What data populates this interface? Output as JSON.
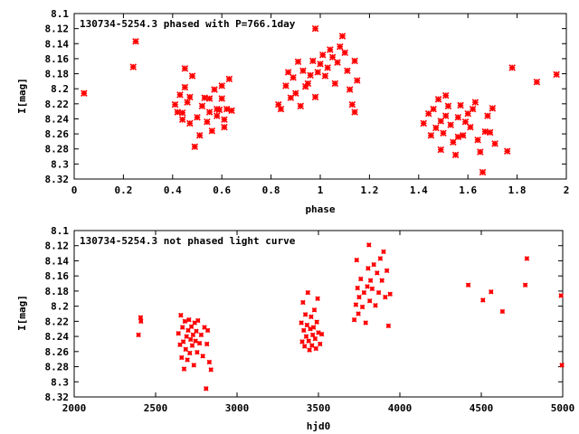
{
  "chart_data": [
    {
      "type": "scatter",
      "title": "130734-5254.3 phased with P=766.1day",
      "xlabel": "phase",
      "ylabel": "I[mag]",
      "xlim": [
        0,
        2
      ],
      "ylim": [
        8.1,
        8.32
      ],
      "y_inverted": true,
      "grid": false,
      "marker_color": "#ff0000",
      "x_ticks": [
        "0",
        "0.2",
        "0.4",
        "0.6",
        "0.8",
        "1",
        "1.2",
        "1.4",
        "1.6",
        "1.8",
        "2"
      ],
      "y_ticks": [
        "8.1",
        "8.12",
        "8.14",
        "8.16",
        "8.18",
        "8.2",
        "8.22",
        "8.24",
        "8.26",
        "8.28",
        "8.3",
        "8.32"
      ],
      "series": [
        {
          "points": [
            [
              0.04,
              8.206
            ],
            [
              0.24,
              8.171
            ],
            [
              0.25,
              8.137
            ],
            [
              0.43,
              8.208
            ],
            [
              0.44,
              8.232
            ],
            [
              0.45,
              8.173
            ],
            [
              0.46,
              8.218
            ],
            [
              0.45,
              8.198
            ],
            [
              0.47,
              8.246
            ],
            [
              0.48,
              8.183
            ],
            [
              0.41,
              8.221
            ],
            [
              0.42,
              8.231
            ],
            [
              0.5,
              8.238
            ],
            [
              0.49,
              8.277
            ],
            [
              0.52,
              8.223
            ],
            [
              0.51,
              8.262
            ],
            [
              0.53,
              8.212
            ],
            [
              0.55,
              8.231
            ],
            [
              0.56,
              8.256
            ],
            [
              0.57,
              8.201
            ],
            [
              0.58,
              8.236
            ],
            [
              0.59,
              8.228
            ],
            [
              0.6,
              8.213
            ],
            [
              0.61,
              8.241
            ],
            [
              0.62,
              8.227
            ],
            [
              0.63,
              8.187
            ],
            [
              0.64,
              8.229
            ],
            [
              0.6,
              8.196
            ],
            [
              0.54,
              8.244
            ],
            [
              0.47,
              8.211
            ],
            [
              0.44,
              8.241
            ],
            [
              0.55,
              8.213
            ],
            [
              0.61,
              8.251
            ],
            [
              0.58,
              8.227
            ],
            [
              0.83,
              8.221
            ],
            [
              0.84,
              8.227
            ],
            [
              0.86,
              8.196
            ],
            [
              0.87,
              8.178
            ],
            [
              0.88,
              8.212
            ],
            [
              0.89,
              8.185
            ],
            [
              0.9,
              8.206
            ],
            [
              0.91,
              8.164
            ],
            [
              0.92,
              8.223
            ],
            [
              0.93,
              8.176
            ],
            [
              0.94,
              8.197
            ],
            [
              0.96,
              8.182
            ],
            [
              0.97,
              8.163
            ],
            [
              0.98,
              8.12
            ],
            [
              0.99,
              8.178
            ],
            [
              1.0,
              8.167
            ],
            [
              1.01,
              8.155
            ],
            [
              1.02,
              8.183
            ],
            [
              1.03,
              8.172
            ],
            [
              1.04,
              8.148
            ],
            [
              1.05,
              8.158
            ],
            [
              1.06,
              8.193
            ],
            [
              1.07,
              8.165
            ],
            [
              1.08,
              8.144
            ],
            [
              1.09,
              8.13
            ],
            [
              1.1,
              8.152
            ],
            [
              1.11,
              8.176
            ],
            [
              1.12,
              8.201
            ],
            [
              1.13,
              8.221
            ],
            [
              1.14,
              8.163
            ],
            [
              1.15,
              8.189
            ],
            [
              1.14,
              8.231
            ],
            [
              0.95,
              8.193
            ],
            [
              0.98,
              8.211
            ],
            [
              1.42,
              8.246
            ],
            [
              1.44,
              8.233
            ],
            [
              1.45,
              8.262
            ],
            [
              1.46,
              8.227
            ],
            [
              1.47,
              8.252
            ],
            [
              1.48,
              8.214
            ],
            [
              1.49,
              8.243
            ],
            [
              1.5,
              8.259
            ],
            [
              1.51,
              8.236
            ],
            [
              1.52,
              8.223
            ],
            [
              1.53,
              8.248
            ],
            [
              1.54,
              8.271
            ],
            [
              1.55,
              8.288
            ],
            [
              1.56,
              8.238
            ],
            [
              1.57,
              8.222
            ],
            [
              1.58,
              8.262
            ],
            [
              1.59,
              8.244
            ],
            [
              1.6,
              8.233
            ],
            [
              1.61,
              8.251
            ],
            [
              1.62,
              8.227
            ],
            [
              1.63,
              8.218
            ],
            [
              1.64,
              8.268
            ],
            [
              1.65,
              8.284
            ],
            [
              1.66,
              8.311
            ],
            [
              1.67,
              8.257
            ],
            [
              1.68,
              8.236
            ],
            [
              1.69,
              8.258
            ],
            [
              1.7,
              8.226
            ],
            [
              1.71,
              8.273
            ],
            [
              1.51,
              8.209
            ],
            [
              1.76,
              8.283
            ],
            [
              1.78,
              8.172
            ],
            [
              1.88,
              8.191
            ],
            [
              1.96,
              8.181
            ],
            [
              1.49,
              8.281
            ],
            [
              1.56,
              8.264
            ]
          ]
        }
      ]
    },
    {
      "type": "scatter",
      "title": "130734-5254.3 not phased light curve",
      "xlabel": "hjd0",
      "ylabel": "I[mag]",
      "xlim": [
        2000,
        5000
      ],
      "ylim": [
        8.1,
        8.32
      ],
      "y_inverted": true,
      "grid": false,
      "marker_color": "#ff0000",
      "x_ticks": [
        "2000",
        "2500",
        "3000",
        "3500",
        "4000",
        "4500",
        "5000"
      ],
      "y_ticks": [
        "8.1",
        "8.12",
        "8.14",
        "8.16",
        "8.18",
        "8.2",
        "8.22",
        "8.24",
        "8.26",
        "8.28",
        "8.3",
        "8.32"
      ],
      "series": [
        {
          "points": [
            [
              2395,
              8.238
            ],
            [
              2408,
              8.215
            ],
            [
              2410,
              8.22
            ],
            [
              2640,
              8.236
            ],
            [
              2650,
              8.251
            ],
            [
              2655,
              8.212
            ],
            [
              2660,
              8.268
            ],
            [
              2665,
              8.228
            ],
            [
              2670,
              8.247
            ],
            [
              2675,
              8.283
            ],
            [
              2680,
              8.22
            ],
            [
              2685,
              8.257
            ],
            [
              2690,
              8.24
            ],
            [
              2695,
              8.271
            ],
            [
              2700,
              8.232
            ],
            [
              2705,
              8.218
            ],
            [
              2710,
              8.262
            ],
            [
              2715,
              8.244
            ],
            [
              2720,
              8.227
            ],
            [
              2725,
              8.252
            ],
            [
              2730,
              8.238
            ],
            [
              2735,
              8.278
            ],
            [
              2740,
              8.222
            ],
            [
              2745,
              8.246
            ],
            [
              2750,
              8.233
            ],
            [
              2755,
              8.261
            ],
            [
              2760,
              8.219
            ],
            [
              2770,
              8.249
            ],
            [
              2780,
              8.238
            ],
            [
              2790,
              8.266
            ],
            [
              2800,
              8.228
            ],
            [
              2810,
              8.309
            ],
            [
              2815,
              8.25
            ],
            [
              2820,
              8.232
            ],
            [
              2830,
              8.274
            ],
            [
              2840,
              8.284
            ],
            [
              3395,
              8.222
            ],
            [
              3400,
              8.247
            ],
            [
              3405,
              8.195
            ],
            [
              3410,
              8.232
            ],
            [
              3415,
              8.253
            ],
            [
              3420,
              8.211
            ],
            [
              3425,
              8.24
            ],
            [
              3430,
              8.225
            ],
            [
              3435,
              8.182
            ],
            [
              3440,
              8.246
            ],
            [
              3445,
              8.258
            ],
            [
              3450,
              8.23
            ],
            [
              3455,
              8.214
            ],
            [
              3460,
              8.252
            ],
            [
              3465,
              8.238
            ],
            [
              3470,
              8.228
            ],
            [
              3475,
              8.205
            ],
            [
              3480,
              8.243
            ],
            [
              3485,
              8.256
            ],
            [
              3490,
              8.221
            ],
            [
              3495,
              8.19
            ],
            [
              3500,
              8.235
            ],
            [
              3510,
              8.25
            ],
            [
              3520,
              8.237
            ],
            [
              3720,
              8.218
            ],
            [
              3730,
              8.198
            ],
            [
              3740,
              8.176
            ],
            [
              3745,
              8.21
            ],
            [
              3750,
              8.188
            ],
            [
              3760,
              8.164
            ],
            [
              3770,
              8.201
            ],
            [
              3780,
              8.182
            ],
            [
              3790,
              8.222
            ],
            [
              3800,
              8.174
            ],
            [
              3805,
              8.15
            ],
            [
              3810,
              8.119
            ],
            [
              3815,
              8.193
            ],
            [
              3820,
              8.166
            ],
            [
              3830,
              8.177
            ],
            [
              3840,
              8.145
            ],
            [
              3850,
              8.199
            ],
            [
              3860,
              8.156
            ],
            [
              3870,
              8.182
            ],
            [
              3880,
              8.137
            ],
            [
              3890,
              8.166
            ],
            [
              3900,
              8.128
            ],
            [
              3910,
              8.188
            ],
            [
              3920,
              8.153
            ],
            [
              3930,
              8.226
            ],
            [
              3940,
              8.184
            ],
            [
              3735,
              8.139
            ],
            [
              4420,
              8.172
            ],
            [
              4510,
              8.192
            ],
            [
              4560,
              8.181
            ],
            [
              4630,
              8.207
            ],
            [
              4770,
              8.172
            ],
            [
              4780,
              8.137
            ],
            [
              4990,
              8.186
            ],
            [
              4995,
              8.278
            ]
          ]
        }
      ]
    }
  ]
}
